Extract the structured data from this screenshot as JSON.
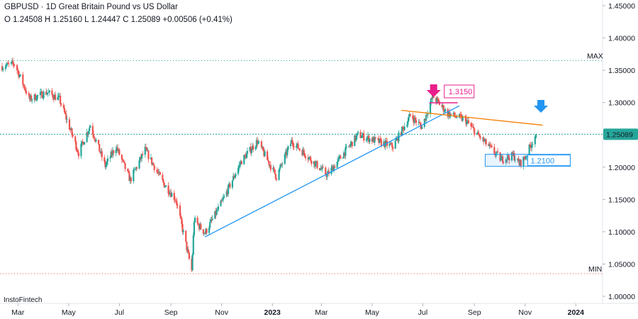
{
  "header": {
    "symbol": "GBPUSD · 1D Great Britain Pound vs US Dollar",
    "ohlc": "O 1.24508 H 1.25160 L 1.24447 C 1.25089  +0.00506 (+0.41%)"
  },
  "branding": "InstoFintech",
  "colors": {
    "up": "#26a69a",
    "down": "#ef5350",
    "price_line": "#26a69a",
    "max_line": "#26a69a",
    "min_line": "#ef5350",
    "trend_up": "#2196f3",
    "trend_down": "#f57c00",
    "pink": "#e91e8c",
    "blue": "#2196f3",
    "price_label_bg": "#26a69a"
  },
  "chart_data": {
    "type": "candlestick",
    "y_ticks": [
      "1.45000",
      "1.40000",
      "1.35000",
      "1.30000",
      "1.25000",
      "1.20000",
      "1.15000",
      "1.10000",
      "1.05000",
      "1.00000"
    ],
    "x_ticks": [
      "Mar",
      "May",
      "Jul",
      "Sep",
      "Nov",
      "2023",
      "Mar",
      "May",
      "Jul",
      "Sep",
      "Nov",
      "2024"
    ],
    "ylim": [
      0.985,
      1.455
    ],
    "start_date": "2022-02-10",
    "end_date": "2023-11-14",
    "current_price": 1.25089,
    "current_price_label": "1.25089",
    "max_value": 1.365,
    "max_label": "MAX",
    "min_value": 1.035,
    "min_label": "MIN",
    "anchors": [
      [
        "2022-02-10",
        1.356
      ],
      [
        "2022-02-25",
        1.36
      ],
      [
        "2022-03-15",
        1.305
      ],
      [
        "2022-04-05",
        1.316
      ],
      [
        "2022-04-20",
        1.305
      ],
      [
        "2022-05-13",
        1.222
      ],
      [
        "2022-05-27",
        1.265
      ],
      [
        "2022-06-14",
        1.202
      ],
      [
        "2022-06-27",
        1.232
      ],
      [
        "2022-07-14",
        1.18
      ],
      [
        "2022-08-01",
        1.227
      ],
      [
        "2022-08-23",
        1.175
      ],
      [
        "2022-09-07",
        1.15
      ],
      [
        "2022-09-26",
        1.04
      ],
      [
        "2022-09-29",
        1.118
      ],
      [
        "2022-10-12",
        1.098
      ],
      [
        "2022-11-01",
        1.145
      ],
      [
        "2022-11-25",
        1.21
      ],
      [
        "2022-12-14",
        1.24
      ],
      [
        "2023-01-06",
        1.185
      ],
      [
        "2023-01-24",
        1.24
      ],
      [
        "2023-03-08",
        1.188
      ],
      [
        "2023-04-14",
        1.25
      ],
      [
        "2023-05-26",
        1.232
      ],
      [
        "2023-06-16",
        1.28
      ],
      [
        "2023-06-30",
        1.262
      ],
      [
        "2023-07-13",
        1.31
      ],
      [
        "2023-07-31",
        1.283
      ],
      [
        "2023-08-21",
        1.273
      ],
      [
        "2023-09-05",
        1.25
      ],
      [
        "2023-10-03",
        1.212
      ],
      [
        "2023-10-18",
        1.218
      ],
      [
        "2023-10-25",
        1.205
      ],
      [
        "2023-11-01",
        1.215
      ],
      [
        "2023-11-07",
        1.232
      ],
      [
        "2023-11-14",
        1.251
      ]
    ],
    "trendlines": [
      {
        "name": "ascending-trendline",
        "points": [
          [
            "2022-10-12",
            1.092
          ],
          [
            "2023-08-14",
            1.295
          ]
        ]
      },
      {
        "name": "descending-trendline",
        "points": [
          [
            "2023-06-05",
            1.288
          ],
          [
            "2023-11-22",
            1.265
          ]
        ]
      }
    ],
    "annotations": [
      {
        "text": "1.3150",
        "date": "2023-07-14",
        "value": 1.315,
        "style": "pink-arrow-down"
      },
      {
        "text": "1.2100",
        "date": "2023-10-18",
        "value": 1.21,
        "style": "blue-arrow-down"
      }
    ]
  }
}
